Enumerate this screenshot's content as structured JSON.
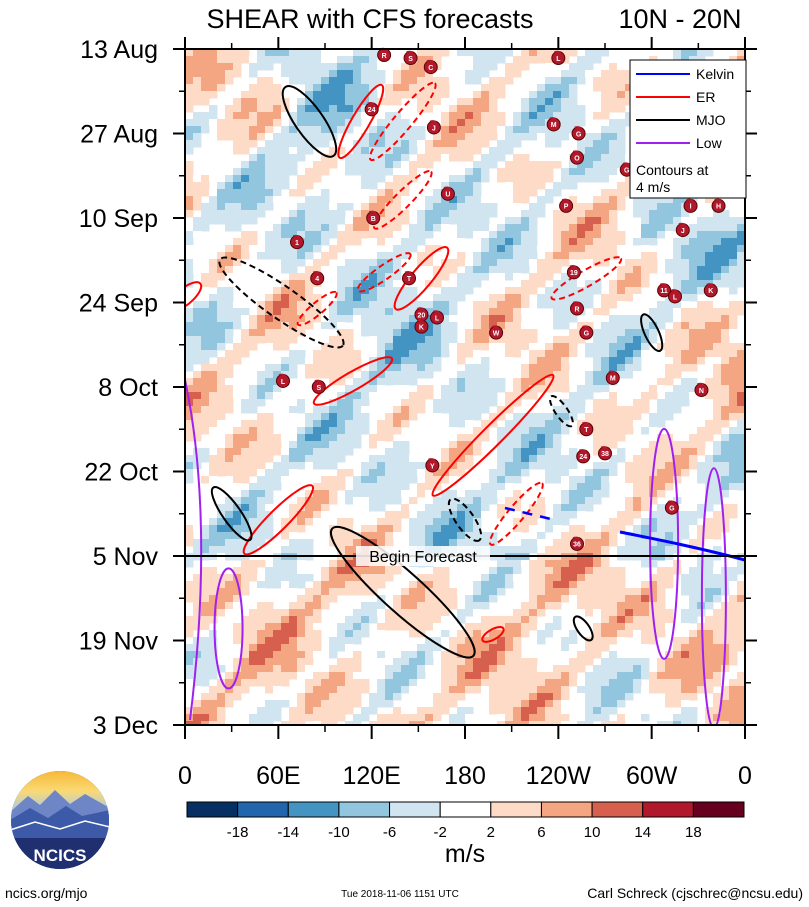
{
  "chart_data": {
    "type": "heatmap",
    "title": "SHEAR with CFS forecasts",
    "region": "10N - 20N",
    "x_axis": {
      "labels": [
        "0",
        "60E",
        "120E",
        "180",
        "120W",
        "60W",
        "0"
      ],
      "values_deg_east": [
        0,
        60,
        120,
        180,
        240,
        300,
        360
      ]
    },
    "y_axis": {
      "labels": [
        "13 Aug",
        "27 Aug",
        "10 Sep",
        "24 Sep",
        "8 Oct",
        "22 Oct",
        "5 Nov",
        "19 Nov",
        "3 Dec"
      ],
      "day_index": [
        0,
        14,
        28,
        42,
        56,
        70,
        84,
        98,
        112
      ]
    },
    "forecast_start_day": 84,
    "forecast_label": "Begin Forecast",
    "colorbar": {
      "unit": "m/s",
      "tick_labels": [
        "-18",
        "-14",
        "-10",
        "-6",
        "-2",
        "2",
        "6",
        "10",
        "14",
        "18"
      ],
      "colors": [
        "#053061",
        "#2166ac",
        "#4393c3",
        "#92c5de",
        "#d1e5f0",
        "#ffffff",
        "#fddbc7",
        "#f4a582",
        "#d6604d",
        "#b2182b",
        "#67001f"
      ]
    },
    "legend": {
      "entries": [
        {
          "name": "Kelvin",
          "color": "#0000ff"
        },
        {
          "name": "ER",
          "color": "#ff0000"
        },
        {
          "name": "MJO",
          "color": "#000000"
        },
        {
          "name": "Low",
          "color": "#a020f0"
        }
      ],
      "note_line1": "Contours at",
      "note_line2": "4 m/s"
    },
    "storms": [
      {
        "label": "R",
        "lon": 128,
        "day": 1
      },
      {
        "label": "S",
        "lon": 145,
        "day": 1.5
      },
      {
        "label": "C",
        "lon": 158,
        "day": 3
      },
      {
        "label": "L",
        "lon": 240,
        "day": 1.5
      },
      {
        "label": "24",
        "lon": 120,
        "day": 10
      },
      {
        "label": "J",
        "lon": 160,
        "day": 13
      },
      {
        "label": "M",
        "lon": 237,
        "day": 12.5
      },
      {
        "label": "G",
        "lon": 253,
        "day": 14
      },
      {
        "label": "O",
        "lon": 252,
        "day": 18
      },
      {
        "label": "G",
        "lon": 284,
        "day": 20
      },
      {
        "label": "U",
        "lon": 169,
        "day": 24
      },
      {
        "label": "P",
        "lon": 245,
        "day": 26
      },
      {
        "label": "I",
        "lon": 325,
        "day": 26
      },
      {
        "label": "H",
        "lon": 343,
        "day": 26
      },
      {
        "label": "B",
        "lon": 121,
        "day": 28
      },
      {
        "label": "J",
        "lon": 320,
        "day": 30
      },
      {
        "label": "1",
        "lon": 72,
        "day": 32
      },
      {
        "label": "19",
        "lon": 250,
        "day": 37
      },
      {
        "label": "4",
        "lon": 85,
        "day": 38
      },
      {
        "label": "T",
        "lon": 144,
        "day": 38
      },
      {
        "label": "11",
        "lon": 308,
        "day": 40
      },
      {
        "label": "L",
        "lon": 315,
        "day": 41
      },
      {
        "label": "K",
        "lon": 338,
        "day": 40
      },
      {
        "label": "20",
        "lon": 152,
        "day": 44
      },
      {
        "label": "L",
        "lon": 162,
        "day": 44.5
      },
      {
        "label": "K",
        "lon": 152,
        "day": 46
      },
      {
        "label": "R",
        "lon": 252,
        "day": 43
      },
      {
        "label": "W",
        "lon": 200,
        "day": 47
      },
      {
        "label": "G",
        "lon": 258,
        "day": 47
      },
      {
        "label": "L",
        "lon": 63,
        "day": 55
      },
      {
        "label": "S",
        "lon": 86,
        "day": 56
      },
      {
        "label": "M",
        "lon": 275,
        "day": 54.5
      },
      {
        "label": "N",
        "lon": 332,
        "day": 56.5
      },
      {
        "label": "T",
        "lon": 258,
        "day": 63
      },
      {
        "label": "38",
        "lon": 270,
        "day": 67
      },
      {
        "label": "24",
        "lon": 256,
        "day": 67.5
      },
      {
        "label": "Y",
        "lon": 159,
        "day": 69
      },
      {
        "label": "G",
        "lon": 313,
        "day": 76
      },
      {
        "label": "36",
        "lon": 252,
        "day": 82
      }
    ]
  },
  "footer": {
    "logo_text": "NCICS",
    "left": "ncics.org/mjo",
    "center": "Tue 2018-11-06 1151 UTC",
    "right": "Carl Schreck (cjschrec@ncsu.edu)"
  }
}
